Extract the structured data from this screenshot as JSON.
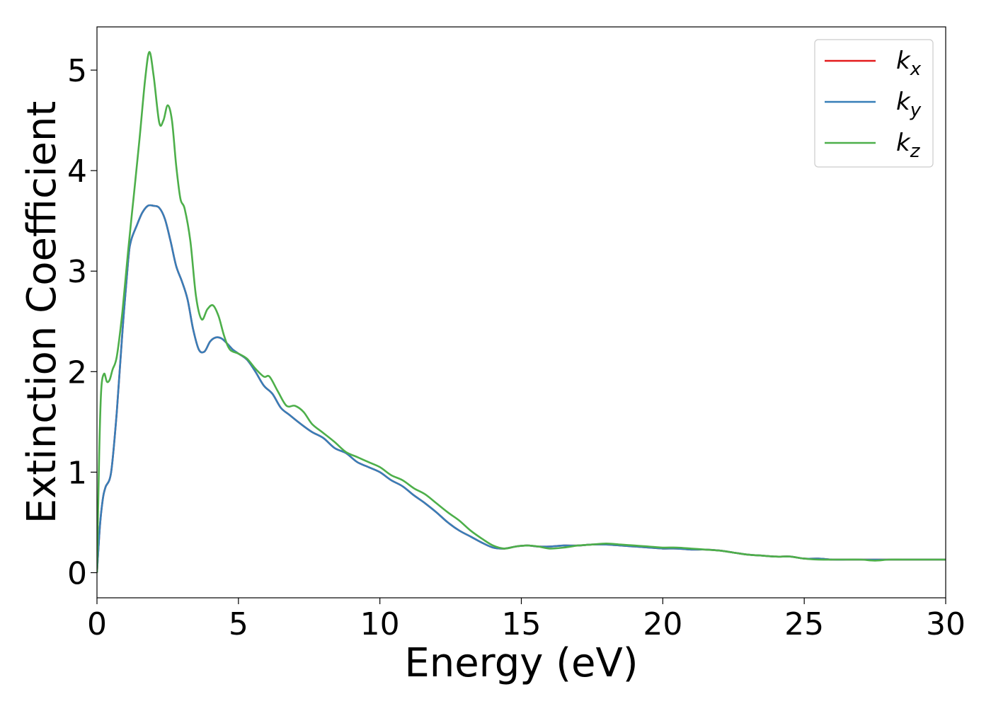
{
  "chart_data": {
    "type": "line",
    "title": "",
    "xlabel": "Energy (eV)",
    "ylabel": "Extinction Coefficient",
    "xlim": [
      0,
      30
    ],
    "ylim": [
      -0.25,
      5.43
    ],
    "xticks": [
      0,
      5,
      10,
      15,
      20,
      25,
      30
    ],
    "xtick_labels": [
      "0",
      "5",
      "10",
      "15",
      "20",
      "25",
      "30"
    ],
    "yticks": [
      0,
      1,
      2,
      3,
      4,
      5
    ],
    "ytick_labels": [
      "0",
      "1",
      "2",
      "3",
      "4",
      "5"
    ],
    "grid": false,
    "legend_position": "top-right",
    "series": [
      {
        "name": "k",
        "subscript": "x",
        "color": "#e41a1c",
        "x": [
          0,
          0.1,
          0.2,
          0.3,
          0.5,
          0.7,
          0.9,
          1.1,
          1.2,
          1.4,
          1.6,
          1.8,
          2.0,
          2.2,
          2.4,
          2.6,
          2.8,
          3.0,
          3.2,
          3.4,
          3.6,
          3.8,
          4.0,
          4.2,
          4.4,
          4.6,
          4.8,
          5.0,
          5.3,
          5.6,
          5.9,
          6.2,
          6.5,
          6.8,
          7.2,
          7.6,
          8.0,
          8.4,
          8.8,
          9.2,
          9.6,
          10.0,
          10.4,
          10.8,
          11.2,
          11.6,
          12.0,
          12.4,
          12.8,
          13.2,
          13.6,
          14.0,
          14.4,
          14.8,
          15.2,
          15.6,
          16.0,
          16.5,
          17.0,
          17.5,
          18.0,
          18.5,
          19.0,
          19.5,
          20.0,
          20.5,
          21.0,
          21.5,
          22.0,
          22.5,
          23.0,
          23.5,
          24.0,
          24.5,
          25.0,
          25.5,
          26.0,
          26.5,
          27.0,
          27.5,
          28.0,
          28.5,
          29.0,
          29.5,
          30.0
        ],
        "values": [
          0.0,
          0.45,
          0.72,
          0.85,
          1.0,
          1.6,
          2.4,
          3.1,
          3.3,
          3.45,
          3.58,
          3.65,
          3.65,
          3.63,
          3.52,
          3.3,
          3.05,
          2.9,
          2.72,
          2.42,
          2.22,
          2.2,
          2.3,
          2.34,
          2.33,
          2.28,
          2.22,
          2.18,
          2.12,
          2.0,
          1.86,
          1.78,
          1.64,
          1.57,
          1.48,
          1.4,
          1.34,
          1.24,
          1.19,
          1.1,
          1.05,
          1.0,
          0.92,
          0.86,
          0.77,
          0.69,
          0.6,
          0.5,
          0.42,
          0.36,
          0.3,
          0.25,
          0.24,
          0.26,
          0.27,
          0.26,
          0.26,
          0.27,
          0.27,
          0.28,
          0.28,
          0.27,
          0.26,
          0.25,
          0.24,
          0.24,
          0.23,
          0.23,
          0.22,
          0.2,
          0.18,
          0.17,
          0.16,
          0.16,
          0.14,
          0.14,
          0.13,
          0.13,
          0.13,
          0.13,
          0.13,
          0.13,
          0.13,
          0.13,
          0.13
        ]
      },
      {
        "name": "k",
        "subscript": "y",
        "color": "#377eb8",
        "x": [
          0,
          0.1,
          0.2,
          0.3,
          0.5,
          0.7,
          0.9,
          1.1,
          1.2,
          1.4,
          1.6,
          1.8,
          2.0,
          2.2,
          2.4,
          2.6,
          2.8,
          3.0,
          3.2,
          3.4,
          3.6,
          3.8,
          4.0,
          4.2,
          4.4,
          4.6,
          4.8,
          5.0,
          5.3,
          5.6,
          5.9,
          6.2,
          6.5,
          6.8,
          7.2,
          7.6,
          8.0,
          8.4,
          8.8,
          9.2,
          9.6,
          10.0,
          10.4,
          10.8,
          11.2,
          11.6,
          12.0,
          12.4,
          12.8,
          13.2,
          13.6,
          14.0,
          14.4,
          14.8,
          15.2,
          15.6,
          16.0,
          16.5,
          17.0,
          17.5,
          18.0,
          18.5,
          19.0,
          19.5,
          20.0,
          20.5,
          21.0,
          21.5,
          22.0,
          22.5,
          23.0,
          23.5,
          24.0,
          24.5,
          25.0,
          25.5,
          26.0,
          26.5,
          27.0,
          27.5,
          28.0,
          28.5,
          29.0,
          29.5,
          30.0
        ],
        "values": [
          0.0,
          0.45,
          0.72,
          0.85,
          1.0,
          1.6,
          2.4,
          3.1,
          3.3,
          3.45,
          3.58,
          3.65,
          3.65,
          3.63,
          3.52,
          3.3,
          3.05,
          2.9,
          2.72,
          2.42,
          2.22,
          2.2,
          2.3,
          2.34,
          2.33,
          2.28,
          2.22,
          2.18,
          2.12,
          2.0,
          1.86,
          1.78,
          1.64,
          1.57,
          1.48,
          1.4,
          1.34,
          1.24,
          1.19,
          1.1,
          1.05,
          1.0,
          0.92,
          0.86,
          0.77,
          0.69,
          0.6,
          0.5,
          0.42,
          0.36,
          0.3,
          0.25,
          0.24,
          0.26,
          0.27,
          0.26,
          0.26,
          0.27,
          0.27,
          0.28,
          0.28,
          0.27,
          0.26,
          0.25,
          0.24,
          0.24,
          0.23,
          0.23,
          0.22,
          0.2,
          0.18,
          0.17,
          0.16,
          0.16,
          0.14,
          0.14,
          0.13,
          0.13,
          0.13,
          0.13,
          0.13,
          0.13,
          0.13,
          0.13,
          0.13
        ]
      },
      {
        "name": "k",
        "subscript": "z",
        "color": "#4daf4a",
        "x": [
          0,
          0.08,
          0.15,
          0.25,
          0.35,
          0.45,
          0.55,
          0.7,
          0.9,
          1.1,
          1.3,
          1.5,
          1.7,
          1.85,
          2.0,
          2.2,
          2.35,
          2.5,
          2.65,
          2.8,
          2.95,
          3.1,
          3.3,
          3.5,
          3.7,
          3.9,
          4.1,
          4.3,
          4.5,
          4.7,
          5.0,
          5.3,
          5.6,
          5.9,
          6.1,
          6.4,
          6.7,
          7.0,
          7.3,
          7.6,
          8.0,
          8.4,
          8.8,
          9.2,
          9.6,
          10.0,
          10.4,
          10.8,
          11.2,
          11.6,
          12.0,
          12.4,
          12.8,
          13.2,
          13.6,
          14.0,
          14.4,
          14.8,
          15.2,
          15.6,
          16.0,
          16.5,
          17.0,
          17.5,
          18.0,
          18.5,
          19.0,
          19.5,
          20.0,
          20.5,
          21.0,
          21.5,
          22.0,
          22.5,
          23.0,
          23.5,
          24.0,
          24.5,
          25.0,
          25.5,
          26.0,
          26.5,
          27.0,
          27.5,
          28.0,
          28.5,
          29.0,
          29.5,
          30.0
        ],
        "values": [
          0.0,
          1.2,
          1.82,
          1.98,
          1.9,
          1.92,
          2.02,
          2.15,
          2.6,
          3.2,
          3.75,
          4.3,
          4.9,
          5.18,
          4.95,
          4.48,
          4.5,
          4.65,
          4.5,
          4.05,
          3.72,
          3.62,
          3.3,
          2.75,
          2.52,
          2.62,
          2.66,
          2.55,
          2.35,
          2.22,
          2.18,
          2.13,
          2.03,
          1.95,
          1.95,
          1.8,
          1.66,
          1.66,
          1.6,
          1.48,
          1.39,
          1.3,
          1.2,
          1.15,
          1.1,
          1.05,
          0.97,
          0.92,
          0.84,
          0.78,
          0.69,
          0.6,
          0.52,
          0.42,
          0.34,
          0.27,
          0.24,
          0.26,
          0.27,
          0.26,
          0.24,
          0.25,
          0.27,
          0.28,
          0.29,
          0.28,
          0.27,
          0.26,
          0.25,
          0.25,
          0.24,
          0.23,
          0.22,
          0.2,
          0.18,
          0.17,
          0.16,
          0.16,
          0.14,
          0.13,
          0.13,
          0.13,
          0.13,
          0.12,
          0.13,
          0.13,
          0.13,
          0.13,
          0.13
        ]
      }
    ]
  }
}
